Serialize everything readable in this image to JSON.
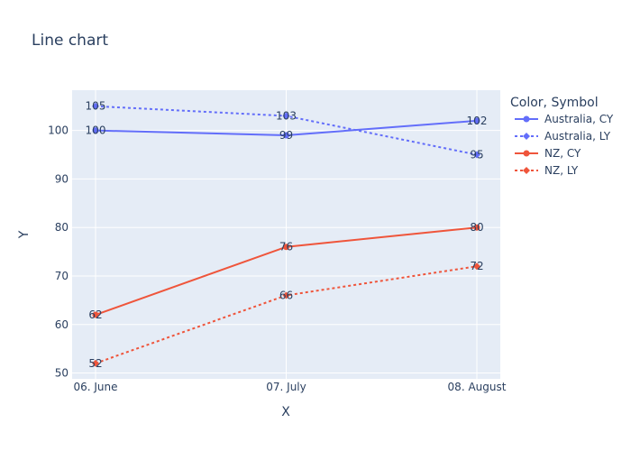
{
  "chart_data": {
    "type": "line",
    "title": "Line chart",
    "xlabel": "X",
    "ylabel": "Y",
    "categories": [
      "06. June",
      "07. July",
      "08. August"
    ],
    "y_ticks": [
      50,
      60,
      70,
      80,
      90,
      100
    ],
    "ylim": [
      48.8,
      108.3
    ],
    "grid": true,
    "legend_title": "Color, Symbol",
    "legend_position": "right",
    "series": [
      {
        "name": "Australia, CY",
        "values": [
          100,
          99,
          102
        ],
        "color": "#636efa",
        "dash": "solid",
        "symbol": "circle"
      },
      {
        "name": "Australia, LY",
        "values": [
          105,
          103,
          95
        ],
        "color": "#636efa",
        "dash": "dot",
        "symbol": "diamond"
      },
      {
        "name": "NZ, CY",
        "values": [
          62,
          76,
          80
        ],
        "color": "#ef553b",
        "dash": "solid",
        "symbol": "circle"
      },
      {
        "name": "NZ, LY",
        "values": [
          52,
          66,
          72
        ],
        "color": "#ef553b",
        "dash": "dot",
        "symbol": "diamond"
      }
    ]
  }
}
